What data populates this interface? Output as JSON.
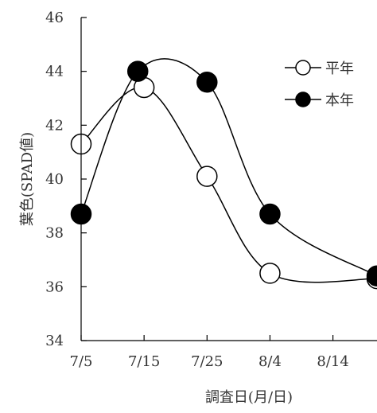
{
  "chart_data": {
    "type": "line",
    "x": [
      "7/5",
      "7/14",
      "7/25",
      "8/4",
      "8/21"
    ],
    "xticks": [
      "7/5",
      "7/15",
      "7/25",
      "8/4",
      "8/14"
    ],
    "xlim": [
      "7/5",
      "8/21"
    ],
    "ylim": [
      34,
      46
    ],
    "yticks": [
      34,
      36,
      38,
      40,
      42,
      44,
      46
    ],
    "xlabel": "調査日(月/日)",
    "ylabel": "葉色(SPAD値)",
    "grid": false,
    "legend": "top-right",
    "smooth": true,
    "series": [
      {
        "name": "平年",
        "x": [
          "7/5",
          "7/15",
          "7/25",
          "8/4",
          "8/21"
        ],
        "values": [
          41.3,
          43.4,
          40.1,
          36.5,
          36.3
        ],
        "marker": "open-circle",
        "color": "#000000"
      },
      {
        "name": "本年",
        "x": [
          "7/5",
          "7/14",
          "7/25",
          "8/4",
          "8/21"
        ],
        "values": [
          38.7,
          44.0,
          43.6,
          38.7,
          36.4
        ],
        "marker": "filled-circle",
        "color": "#000000"
      }
    ]
  }
}
